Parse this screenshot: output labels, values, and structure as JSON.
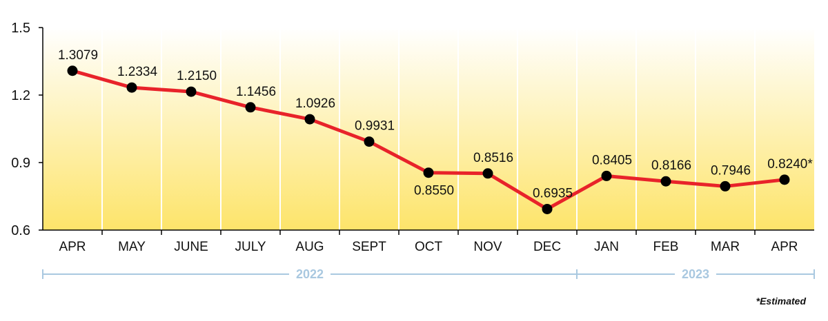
{
  "chart_data": {
    "type": "line",
    "categories": [
      "APR",
      "MAY",
      "JUNE",
      "JULY",
      "AUG",
      "SEPT",
      "OCT",
      "NOV",
      "DEC",
      "JAN",
      "FEB",
      "MAR",
      "APR"
    ],
    "values": [
      1.3079,
      1.2334,
      1.215,
      1.1456,
      1.0926,
      0.9931,
      0.855,
      0.8516,
      0.6935,
      0.8405,
      0.8166,
      0.7946,
      0.824
    ],
    "data_labels": [
      "1.3079",
      "1.2334",
      "1.2150",
      "1.1456",
      "1.0926",
      "0.9931",
      "0.8550",
      "0.8516",
      "0.6935",
      "0.8405",
      "0.8166",
      "0.7946",
      "0.8240*"
    ],
    "yticks": [
      "0.6",
      "0.9",
      "1.2",
      "1.5"
    ],
    "ylim": [
      0.6,
      1.5
    ],
    "grid": "vertical",
    "year_groups": [
      {
        "label": "2022",
        "start": 0,
        "end": 8
      },
      {
        "label": "2023",
        "start": 9,
        "end": 12
      }
    ],
    "footnote": "*Estimated",
    "colors": {
      "line": "#e8232a",
      "marker": "#000000",
      "background_top": "#ffffff",
      "background_bottom": "#fde46a",
      "year_bracket": "#a9c8e0"
    }
  }
}
